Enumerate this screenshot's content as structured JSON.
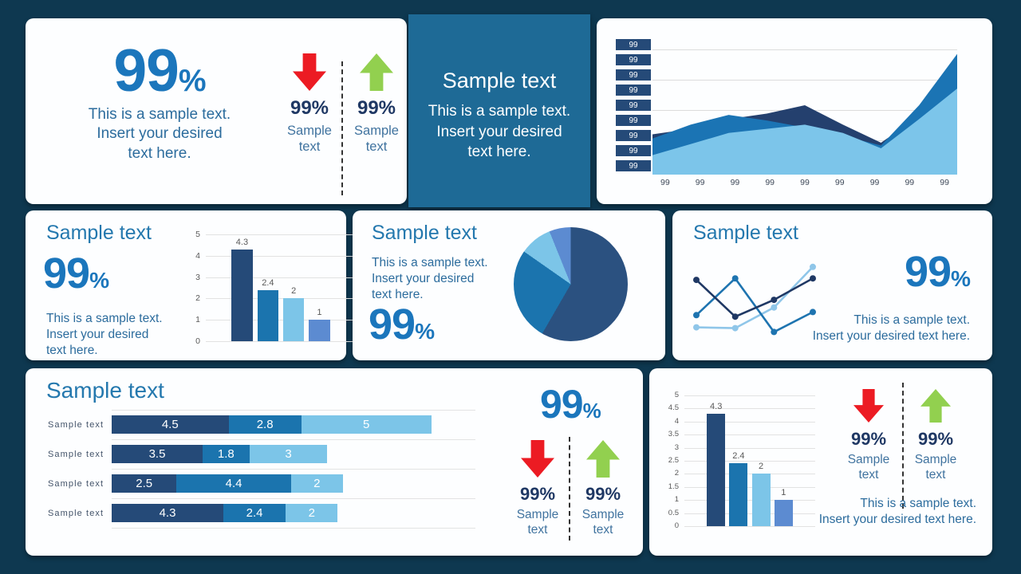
{
  "colors": {
    "background": "#0E3850",
    "card": "#FDFEFF",
    "featured_teal": "#1E6A96",
    "accent_blue": "#1B76BC",
    "heading_blue": "#2478AE",
    "body_blue": "#2C6C9D",
    "navy_text": "#1F3864",
    "label_blue": "#40739F",
    "red_arrow": "#EC1B23",
    "green_arrow": "#92D04F",
    "bar_navy": "#254A78",
    "bar_medium": "#1B74AE",
    "bar_light": "#7CC5E8",
    "bar_cornflower": "#5C8BD1",
    "axis_grey": "#595959",
    "gridline": "#DCDCDC"
  },
  "kpi_card": {
    "value": "99",
    "unit": "%",
    "desc_lines": [
      "This is a sample text.",
      "Insert your desired",
      "text here."
    ],
    "down": {
      "value": "99%",
      "label_lines": [
        "Sample",
        "text"
      ]
    },
    "up": {
      "value": "99%",
      "label_lines": [
        "Sample",
        "text"
      ]
    }
  },
  "featured_card": {
    "title": "Sample text",
    "desc_lines": [
      "This is a sample text.",
      "Insert your desired",
      "text here."
    ]
  },
  "overview_card": {
    "title": "Sample text",
    "value": "99",
    "unit": "%",
    "desc_lines": [
      "This is a sample text.",
      "Insert your desired",
      "text here."
    ]
  },
  "share_card": {
    "title": "Sample text",
    "value": "99",
    "unit": "%",
    "desc_lines": [
      "This is a sample text.",
      "Insert your desired",
      "text here."
    ]
  },
  "compare_card": {
    "title": "Sample text",
    "value": "99",
    "unit": "%",
    "desc_lines": [
      "This is a sample text.",
      "Insert your desired text here."
    ]
  },
  "progress_card": {
    "title": "Sample text",
    "value": "99",
    "unit": "%",
    "down": {
      "value": "99%",
      "label_lines": [
        "Sample",
        "text"
      ]
    },
    "up": {
      "value": "99%",
      "label_lines": [
        "Sample",
        "text"
      ]
    }
  },
  "detail_card": {
    "down": {
      "value": "99%",
      "label_lines": [
        "Sample",
        "text"
      ]
    },
    "up": {
      "value": "99%",
      "label_lines": [
        "Sample",
        "text"
      ]
    },
    "desc_lines": [
      "This is a sample text.",
      "Insert your desired text here."
    ]
  },
  "chart_data": [
    {
      "id": "trend-area",
      "type": "area",
      "left_labels": [
        "99",
        "99",
        "99",
        "99",
        "99",
        "99",
        "99",
        "99",
        "99"
      ],
      "x_labels": [
        "99",
        "99",
        "99",
        "99",
        "99",
        "99",
        "99",
        "99",
        "99"
      ],
      "ylim": [
        0,
        1
      ],
      "grid": true,
      "legend": "none",
      "series": [
        {
          "name": "series-dark",
          "color": "#24406E",
          "values": [
            0.29,
            0.33,
            0.4,
            0.44,
            0.5,
            0.36,
            0.23,
            0.42,
            0.55
          ]
        },
        {
          "name": "series-medium",
          "color": "#1B74B4",
          "values": [
            0.26,
            0.36,
            0.43,
            0.39,
            0.34,
            0.28,
            0.21,
            0.5,
            0.87
          ]
        },
        {
          "name": "series-light",
          "color": "#7CC5EA",
          "values": [
            0.14,
            0.22,
            0.3,
            0.33,
            0.36,
            0.3,
            0.19,
            0.4,
            0.62
          ]
        }
      ]
    },
    {
      "id": "overview-columns",
      "type": "bar",
      "categories": [
        "",
        "",
        "",
        ""
      ],
      "values": [
        4.3,
        2.4,
        2,
        1
      ],
      "labels": [
        "4.3",
        "2.4",
        "2",
        "1"
      ],
      "yticks": [
        "0",
        "1",
        "2",
        "3",
        "4",
        "5"
      ],
      "ymax": 5,
      "grid": true,
      "colors": [
        "#254A78",
        "#1B74AE",
        "#7CC5E8",
        "#5C8BD1"
      ]
    },
    {
      "id": "share-pie",
      "type": "pie",
      "slices": [
        {
          "name": "slice-navy",
          "deg": 210,
          "color": "#2B5180"
        },
        {
          "name": "slice-medium",
          "deg": 95,
          "color": "#1B74AE"
        },
        {
          "name": "slice-light",
          "deg": 33,
          "color": "#7CC5E8"
        },
        {
          "name": "slice-cornflower",
          "deg": 22,
          "color": "#5C8BD1"
        }
      ]
    },
    {
      "id": "compare-lines",
      "type": "line",
      "x": [
        1,
        2,
        3,
        4
      ],
      "ylim": [
        0,
        1
      ],
      "legend": "none",
      "series": [
        {
          "name": "line-light",
          "color": "#8FC6E9",
          "values": [
            0.16,
            0.15,
            0.42,
            0.95
          ]
        },
        {
          "name": "line-medium",
          "color": "#1E74B0",
          "values": [
            0.32,
            0.8,
            0.1,
            0.36
          ]
        },
        {
          "name": "line-dark",
          "color": "#1F3864",
          "values": [
            0.78,
            0.3,
            0.52,
            0.8
          ]
        }
      ]
    },
    {
      "id": "progress-stacked-bars",
      "type": "bar-stacked-horizontal",
      "xmax": 14,
      "grid": true,
      "row_labels": [
        "Sample text",
        "Sample text",
        "Sample text",
        "Sample text"
      ],
      "rows": [
        [
          4.5,
          2.8,
          5
        ],
        [
          3.5,
          1.8,
          3
        ],
        [
          2.5,
          4.4,
          2
        ],
        [
          4.3,
          2.4,
          2
        ]
      ],
      "colors": [
        "#254A78",
        "#1B74AE",
        "#7CC5E8"
      ]
    },
    {
      "id": "detail-columns",
      "type": "bar",
      "categories": [
        "",
        "",
        "",
        ""
      ],
      "values": [
        4.3,
        2.4,
        2,
        1
      ],
      "labels": [
        "4.3",
        "2.4",
        "2",
        "1"
      ],
      "yticks": [
        "0",
        "0.5",
        "1",
        "1.5",
        "2",
        "2.5",
        "3",
        "3.5",
        "4",
        "4.5",
        "5"
      ],
      "ymax": 5,
      "grid": true,
      "colors": [
        "#254A78",
        "#1B74AE",
        "#7CC5E8",
        "#5C8BD1"
      ]
    }
  ]
}
